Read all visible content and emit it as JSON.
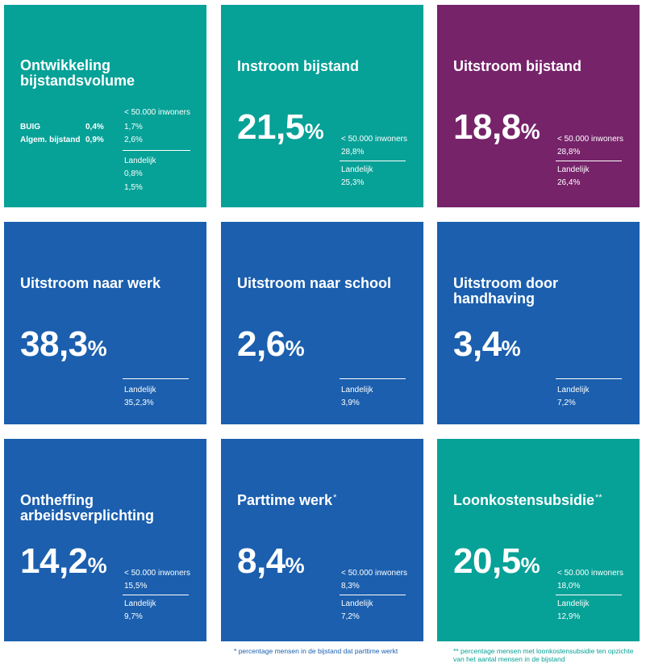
{
  "tiles": {
    "volume": {
      "title": "Ontwikkeling bijstandsvolume",
      "col_header": "< 50.000 inwoners",
      "rows": [
        {
          "label": "BUIG",
          "value": "0,4%",
          "local": "1,7%",
          "landelijk": "0,8%"
        },
        {
          "label": "Algem. bijstand",
          "value": "0,9%",
          "local": "2,6%",
          "landelijk": "1,5%"
        }
      ],
      "landelijk_label": "Landelijk"
    },
    "instroom": {
      "title": "Instroom bijstand",
      "value": "21,5",
      "pct": "%",
      "local_label": "< 50.000 inwoners",
      "local_value": "28,8%",
      "landelijk_label": "Landelijk",
      "landelijk_value": "25,3%"
    },
    "uitstroom": {
      "title": "Uitstroom bijstand",
      "value": "18,8",
      "pct": "%",
      "local_label": "< 50.000 inwoners",
      "local_value": "28,8%",
      "landelijk_label": "Landelijk",
      "landelijk_value": "26,4%"
    },
    "werk": {
      "title": "Uitstroom naar werk",
      "value": "38,3",
      "pct": "%",
      "landelijk_label": "Landelijk",
      "landelijk_value": "35,2,3%"
    },
    "school": {
      "title": "Uitstroom naar school",
      "value": "2,6",
      "pct": "%",
      "landelijk_label": "Landelijk",
      "landelijk_value": "3,9%"
    },
    "handhaving": {
      "title": "Uitstroom door handhaving",
      "value": "3,4",
      "pct": "%",
      "landelijk_label": "Landelijk",
      "landelijk_value": "7,2%"
    },
    "ontheffing": {
      "title": "Ontheffing arbeidsverplichting",
      "value": "14,2",
      "pct": "%",
      "local_label": "< 50.000 inwoners",
      "local_value": "15,5%",
      "landelijk_label": "Landelijk",
      "landelijk_value": "9,7%"
    },
    "parttime": {
      "title": "Parttime werk",
      "marker": "*",
      "value": "8,4",
      "pct": "%",
      "local_label": "< 50.000 inwoners",
      "local_value": "8,3%",
      "landelijk_label": "Landelijk",
      "landelijk_value": "7,2%"
    },
    "loonkosten": {
      "title": "Loonkostensubsidie",
      "marker": "**",
      "value": "20,5",
      "pct": "%",
      "local_label": "< 50.000 inwoners",
      "local_value": "18,0%",
      "landelijk_label": "Landelijk",
      "landelijk_value": "12,9%"
    }
  },
  "footnotes": {
    "parttime_star": "*",
    "parttime_text": "percentage mensen in de bijstand dat parttime werkt",
    "loonkosten_star": "**",
    "loonkosten_text": "percentage mensen met loonkostensubsidie ten opzichte van het aantal mensen in de bijstand"
  },
  "colors": {
    "teal": "#06a197",
    "purple": "#76236a",
    "blue": "#1b5fae",
    "footnote_blue": "#1b5fae",
    "footnote_teal": "#06a197"
  }
}
